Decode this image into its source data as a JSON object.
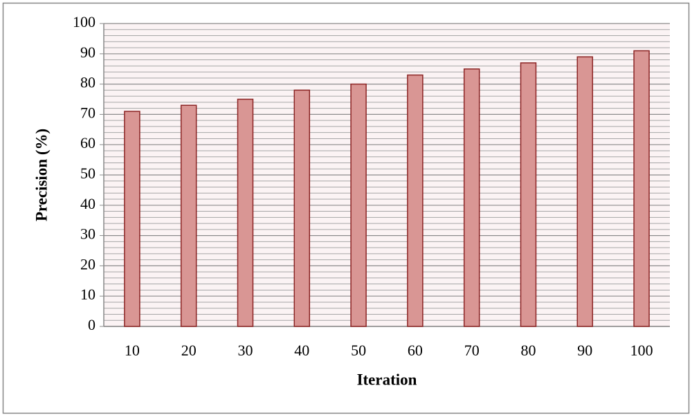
{
  "chart_data": {
    "type": "bar",
    "x_label": "Iteration",
    "y_label": "Precision (%)",
    "categories": [
      "10",
      "20",
      "30",
      "40",
      "50",
      "60",
      "70",
      "80",
      "90",
      "100"
    ],
    "values": [
      71,
      73,
      75,
      78,
      80,
      83,
      85,
      87,
      89,
      91
    ],
    "color": "#d99694",
    "edge_color": "#8b2323",
    "ylim": [
      0,
      100
    ],
    "yticks": [
      0,
      10,
      20,
      30,
      40,
      50,
      60,
      70,
      80,
      90,
      100
    ],
    "grid": true
  }
}
